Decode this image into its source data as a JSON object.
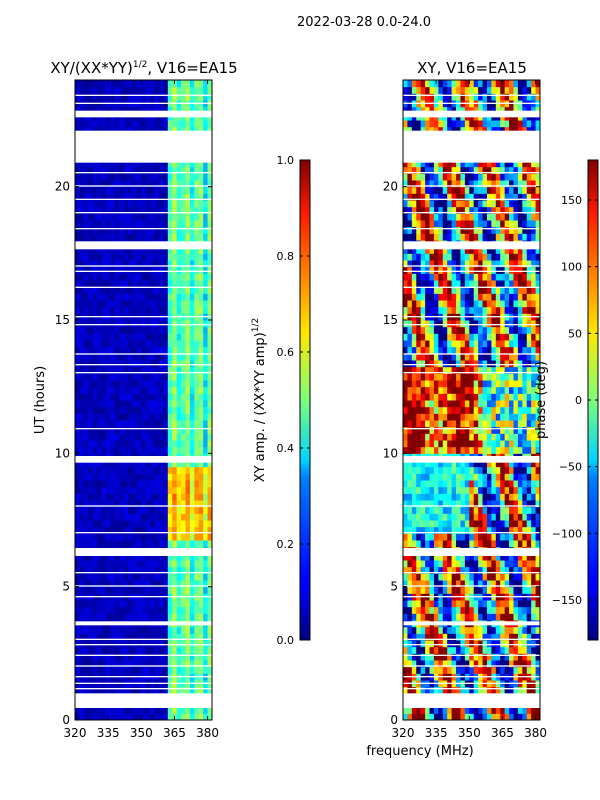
{
  "figure": {
    "suptitle": "2022-03-28 0.0-24.0",
    "shared_xlabel": "frequency (MHz)"
  },
  "chart_data": [
    {
      "type": "heatmap",
      "title_main": "XY/(XX*YY)",
      "title_sup": "1/2",
      "title_tail": ", V16=EA15",
      "xlabel": "",
      "ylabel": "UT (hours)",
      "xlim": [
        320,
        382
      ],
      "ylim": [
        0,
        24
      ],
      "xticks": [
        320,
        335,
        350,
        365,
        380
      ],
      "yticks": [
        0,
        5,
        10,
        15,
        20
      ],
      "quantity": "amplitude",
      "colorbar": {
        "label_main": "XY amp. / (XX*YY amp)",
        "label_sup": "1/2",
        "range": [
          0.0,
          1.0
        ],
        "ticks": [
          "0.0",
          "0.2",
          "0.4",
          "0.6",
          "0.8",
          "1.0"
        ],
        "tick_values": [
          0.0,
          0.2,
          0.4,
          0.6,
          0.8,
          1.0
        ]
      },
      "gaps_ut": [
        [
          0.45,
          1.0
        ],
        [
          1.15,
          1.2
        ],
        [
          1.35,
          1.4
        ],
        [
          1.6,
          1.65
        ],
        [
          2.0,
          2.05
        ],
        [
          2.4,
          2.45
        ],
        [
          2.8,
          2.85
        ],
        [
          3.0,
          3.05
        ],
        [
          3.55,
          3.7
        ],
        [
          4.6,
          4.65
        ],
        [
          5.0,
          5.05
        ],
        [
          5.5,
          5.55
        ],
        [
          6.15,
          6.45
        ],
        [
          7.0,
          7.05
        ],
        [
          8.0,
          8.05
        ],
        [
          9.65,
          9.9
        ],
        [
          10.9,
          10.95
        ],
        [
          13.0,
          13.05
        ],
        [
          13.3,
          13.35
        ],
        [
          13.7,
          13.75
        ],
        [
          14.8,
          14.85
        ],
        [
          15.1,
          15.15
        ],
        [
          16.2,
          16.25
        ],
        [
          16.8,
          16.85
        ],
        [
          17.0,
          17.05
        ],
        [
          17.65,
          17.95
        ],
        [
          18.4,
          18.45
        ],
        [
          19.0,
          19.05
        ],
        [
          19.5,
          19.55
        ],
        [
          20.0,
          20.05
        ],
        [
          20.5,
          20.55
        ],
        [
          20.9,
          22.1
        ],
        [
          22.6,
          22.85
        ],
        [
          23.1,
          23.15
        ],
        [
          23.4,
          23.45
        ]
      ]
    },
    {
      "type": "heatmap",
      "title_main": "XY, V16=EA15",
      "xlabel": "frequency (MHz)",
      "ylabel": "",
      "xlim": [
        320,
        382
      ],
      "ylim": [
        0,
        24
      ],
      "xticks": [
        320,
        335,
        350,
        365,
        380
      ],
      "yticks": [
        0,
        5,
        10,
        15,
        20
      ],
      "quantity": "phase",
      "colorbar": {
        "label_main": "phase (deg)",
        "range": [
          -180,
          180
        ],
        "ticks": [
          "−150",
          "−100",
          "−50",
          "0",
          "50",
          "100",
          "150"
        ],
        "tick_values": [
          -150,
          -100,
          -50,
          0,
          50,
          100,
          150
        ]
      },
      "gaps_ut": [
        [
          0.45,
          1.0
        ],
        [
          1.15,
          1.2
        ],
        [
          1.35,
          1.4
        ],
        [
          1.6,
          1.65
        ],
        [
          2.0,
          2.05
        ],
        [
          2.4,
          2.45
        ],
        [
          2.8,
          2.85
        ],
        [
          3.0,
          3.05
        ],
        [
          3.55,
          3.7
        ],
        [
          4.6,
          4.65
        ],
        [
          5.0,
          5.05
        ],
        [
          5.5,
          5.55
        ],
        [
          6.15,
          6.45
        ],
        [
          7.0,
          7.05
        ],
        [
          8.0,
          8.05
        ],
        [
          9.65,
          9.9
        ],
        [
          10.9,
          10.95
        ],
        [
          13.0,
          13.05
        ],
        [
          13.3,
          13.35
        ],
        [
          13.7,
          13.75
        ],
        [
          14.8,
          14.85
        ],
        [
          15.1,
          15.15
        ],
        [
          16.2,
          16.25
        ],
        [
          16.8,
          16.85
        ],
        [
          17.0,
          17.05
        ],
        [
          17.65,
          17.95
        ],
        [
          18.4,
          18.45
        ],
        [
          19.0,
          19.05
        ],
        [
          19.5,
          19.55
        ],
        [
          20.0,
          20.05
        ],
        [
          20.5,
          20.55
        ],
        [
          20.9,
          22.1
        ],
        [
          22.6,
          22.85
        ],
        [
          23.1,
          23.15
        ],
        [
          23.4,
          23.45
        ]
      ]
    }
  ]
}
